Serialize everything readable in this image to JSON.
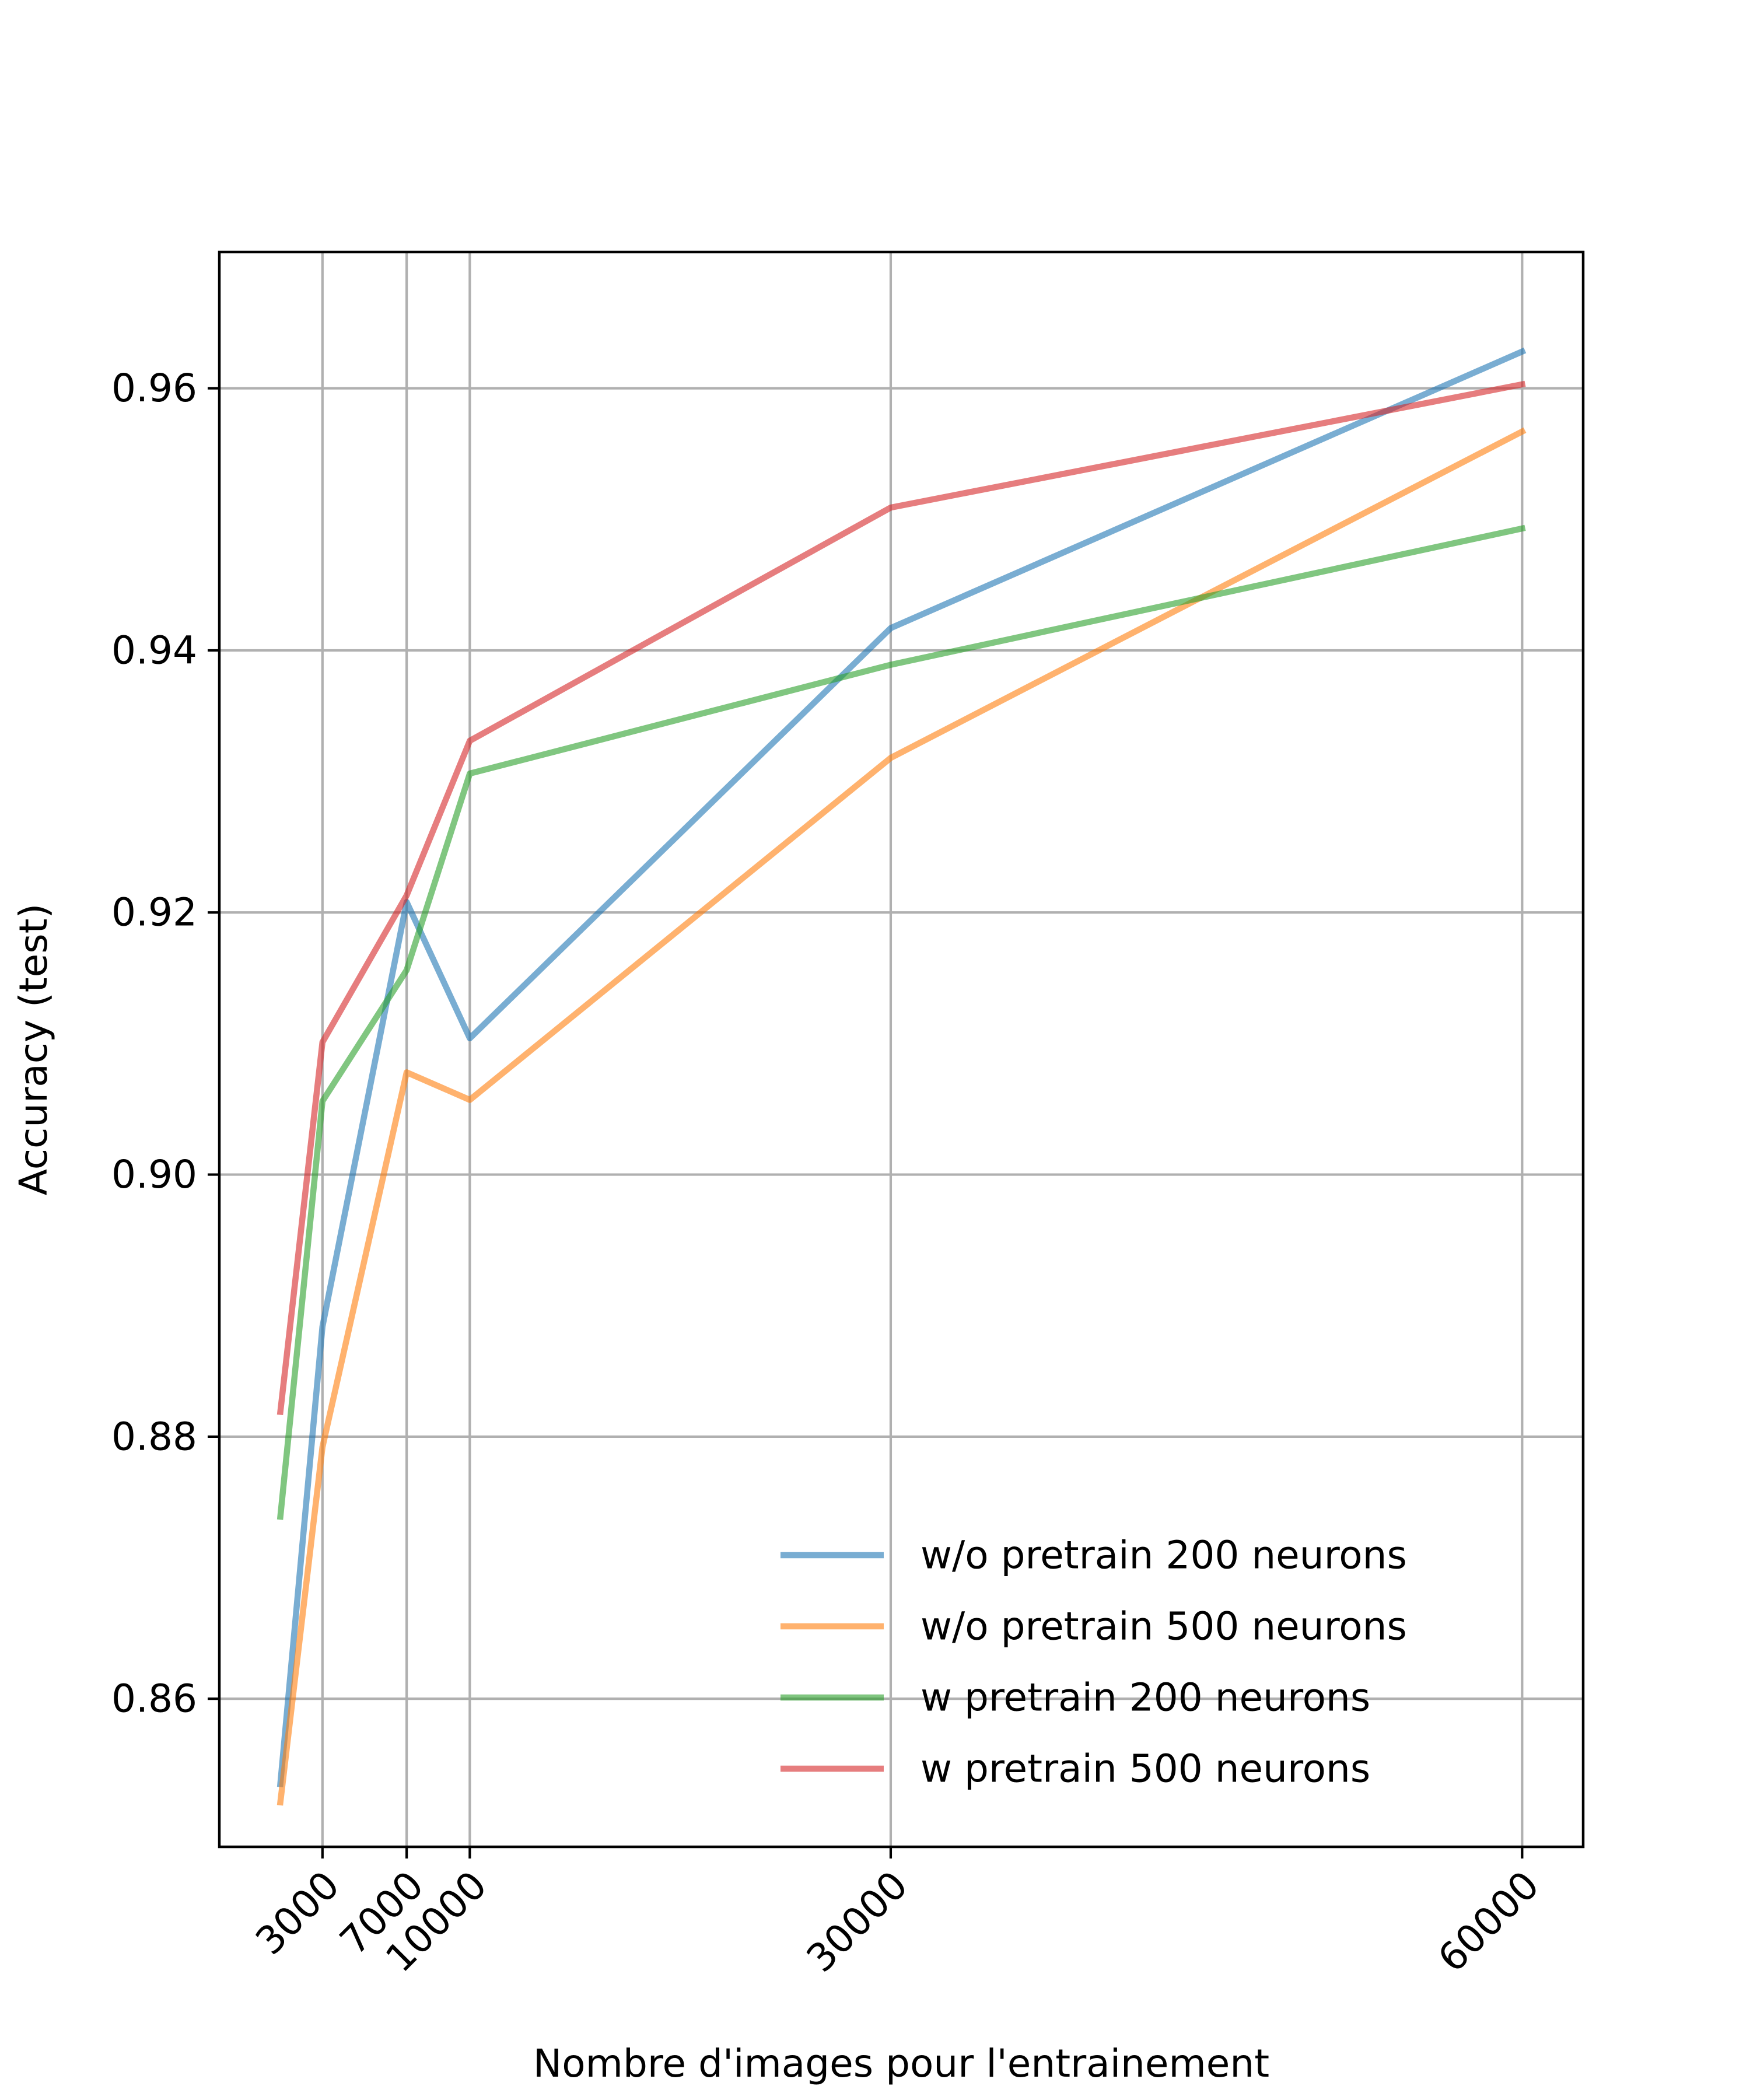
{
  "chart_data": {
    "type": "line",
    "title": "",
    "xlabel": "Nombre d'images pour l'entrainement",
    "ylabel": "Accuracy (test)",
    "x_ticks": [
      3000,
      7000,
      10000,
      30000,
      60000
    ],
    "x_tick_labels": [
      "3000",
      "7000",
      "10000",
      "30000",
      "60000"
    ],
    "y_ticks": [
      0.86,
      0.88,
      0.9,
      0.92,
      0.94,
      0.96
    ],
    "y_tick_labels": [
      "0.86",
      "0.88",
      "0.90",
      "0.92",
      "0.94",
      "0.96"
    ],
    "xlim": [
      -1900,
      62900
    ],
    "ylim": [
      0.8487,
      0.9704
    ],
    "grid": true,
    "legend_position": "bottom-right",
    "x": [
      1000,
      3000,
      7000,
      10000,
      30000,
      60000
    ],
    "series": [
      {
        "name": "w/o pretrain 200 neurons",
        "color": "#1f77b4",
        "values": [
          0.8535,
          0.8884,
          0.9208,
          0.9104,
          0.9417,
          0.9628
        ]
      },
      {
        "name": "w/o pretrain 500 neurons",
        "color": "#ff7f0e",
        "values": [
          0.8521,
          0.8792,
          0.9078,
          0.9057,
          0.9318,
          0.9567
        ]
      },
      {
        "name": "w pretrain 200 neurons",
        "color": "#2ca02c",
        "values": [
          0.8739,
          0.9056,
          0.9156,
          0.9306,
          0.9389,
          0.9493
        ]
      },
      {
        "name": "w pretrain 500 neurons",
        "color": "#d62728",
        "values": [
          0.8819,
          0.9101,
          0.9213,
          0.9331,
          0.9509,
          0.9603
        ]
      }
    ]
  }
}
